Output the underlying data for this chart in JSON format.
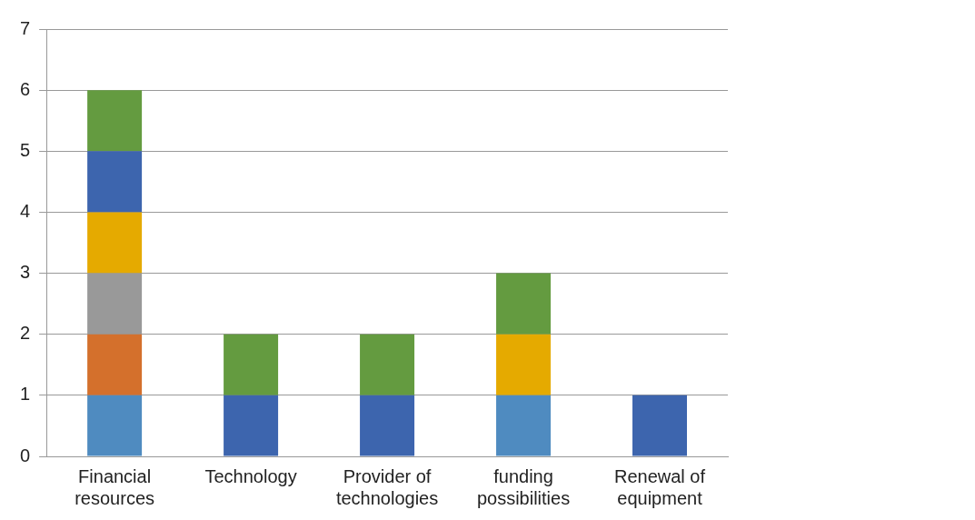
{
  "chart_data": {
    "type": "bar",
    "stacked": true,
    "categories": [
      "Financial resources",
      "Technology",
      "Provider of technologies",
      "funding possibilities",
      "Renewal of equipment"
    ],
    "series": [
      {
        "color": "#4f8bc0",
        "values": [
          1,
          null,
          null,
          1,
          null
        ]
      },
      {
        "color": "#d4702c",
        "values": [
          1,
          null,
          null,
          null,
          null
        ]
      },
      {
        "color": "#999999",
        "values": [
          1,
          null,
          null,
          null,
          null
        ]
      },
      {
        "color": "#e5aa00",
        "values": [
          1,
          null,
          null,
          1,
          null
        ]
      },
      {
        "color": "#3d65ae",
        "values": [
          1,
          1,
          1,
          null,
          1
        ]
      },
      {
        "color": "#649b40",
        "values": [
          1,
          1,
          1,
          1,
          null
        ]
      }
    ],
    "ylim": [
      0,
      7
    ],
    "yticks": [
      0,
      1,
      2,
      3,
      4,
      5,
      6,
      7
    ],
    "grid": "y",
    "legend": false
  }
}
